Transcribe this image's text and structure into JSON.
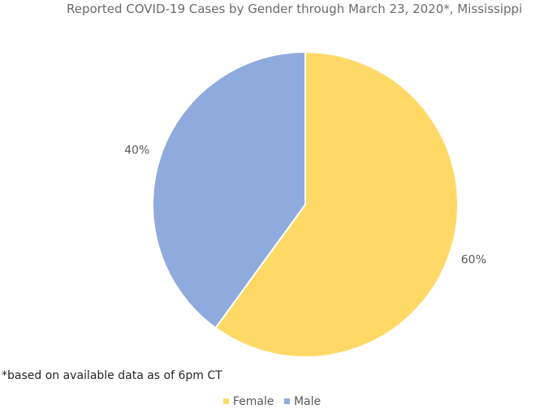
{
  "chart_data": {
    "type": "pie",
    "title": "Reported COVID-19 Cases by Gender through March 23, 2020*, Mississippi",
    "categories": [
      "Female",
      "Male"
    ],
    "values": [
      60,
      40
    ],
    "labels": [
      "60%",
      "40%"
    ],
    "colors": [
      "#FFD966",
      "#8FAADC"
    ],
    "legend_position": "bottom",
    "footnote": "*based on available data as of 6pm CT"
  }
}
